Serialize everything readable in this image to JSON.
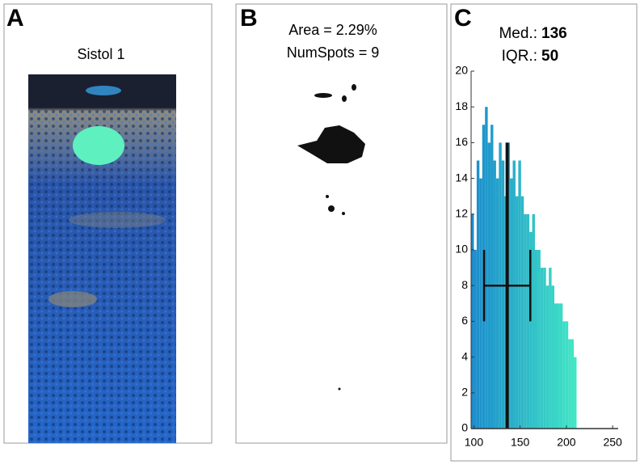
{
  "panels": {
    "a": {
      "label": "A",
      "title": "Sistol 1"
    },
    "b": {
      "label": "B",
      "lines": [
        "Area = 2.29%",
        "NumSpots = 9"
      ]
    },
    "c": {
      "label": "C"
    }
  },
  "chart_data": {
    "type": "histogram",
    "median_label": "Med.:",
    "median": 136,
    "iqr_label": "IQR.:",
    "iqr": 50,
    "median_height": 16,
    "iqr_range": [
      111,
      161
    ],
    "iqr_level": 8,
    "iqr_caps": [
      6,
      10
    ],
    "bins": [
      97,
      100,
      103,
      106,
      109,
      112,
      115,
      118,
      121,
      124,
      127,
      130,
      133,
      136,
      139,
      142,
      145,
      148,
      151,
      154,
      157,
      160,
      163,
      166,
      169,
      172,
      175,
      178,
      181,
      184,
      187,
      190,
      193,
      196,
      199,
      202,
      205,
      208,
      211
    ],
    "values": [
      12,
      10,
      15,
      14,
      17,
      18,
      16,
      17,
      15,
      14,
      16,
      15,
      13,
      16,
      14,
      15,
      13,
      15,
      13,
      12,
      12,
      11,
      12,
      10,
      10,
      9,
      9,
      8,
      9,
      8,
      7,
      7,
      7,
      6,
      6,
      5,
      5,
      4
    ],
    "colors": [
      "#1b8ccc",
      "#40e6c4"
    ],
    "xlim": [
      97,
      256
    ],
    "ylim": [
      0,
      20
    ],
    "xticks": [
      100,
      150,
      200,
      250
    ],
    "yticks": [
      0,
      2,
      4,
      6,
      8,
      10,
      12,
      14,
      16,
      18,
      20
    ]
  }
}
